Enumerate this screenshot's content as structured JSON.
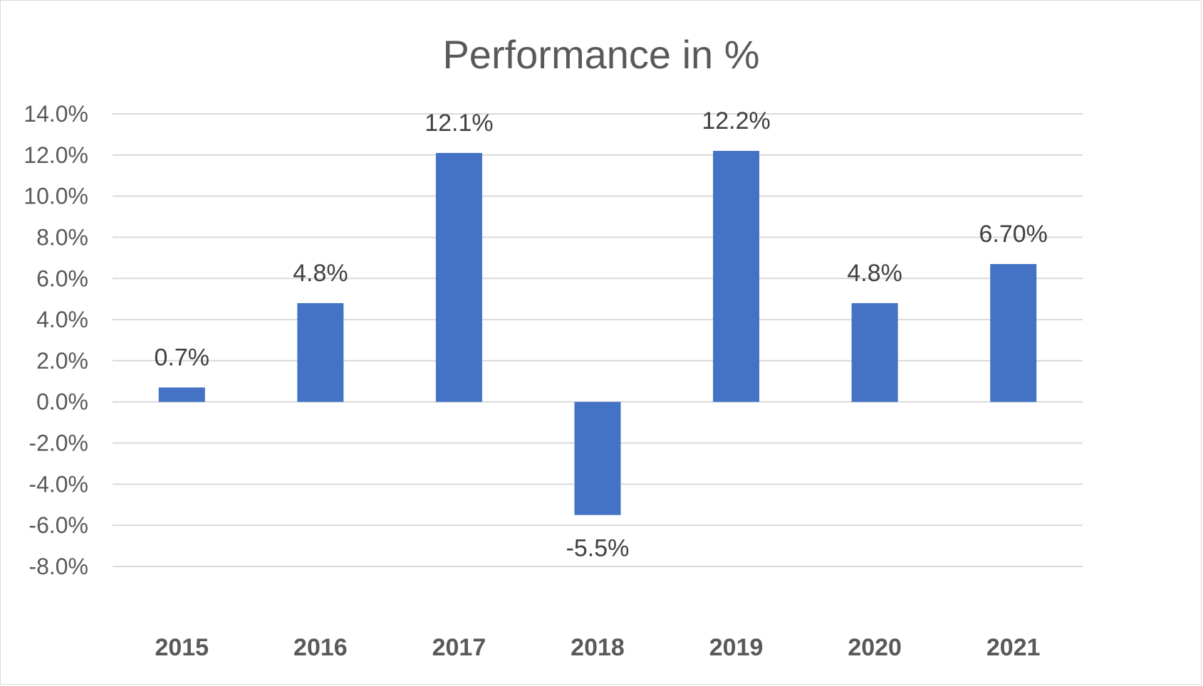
{
  "chart_data": {
    "type": "bar",
    "title": "Performance in %",
    "xlabel": "",
    "ylabel": "",
    "categories": [
      "2015",
      "2016",
      "2017",
      "2018",
      "2019",
      "2020",
      "2021"
    ],
    "values": [
      0.7,
      4.8,
      12.1,
      -5.5,
      12.2,
      4.8,
      6.7
    ],
    "data_labels": [
      "0.7%",
      "4.8%",
      "12.1%",
      "-5.5%",
      "12.2%",
      "4.8%",
      "6.70%"
    ],
    "ylim": [
      -8.0,
      14.0
    ],
    "y_ticks": [
      14.0,
      12.0,
      10.0,
      8.0,
      6.0,
      4.0,
      2.0,
      0.0,
      -2.0,
      -4.0,
      -6.0,
      -8.0
    ],
    "y_tick_labels": [
      "14.0%",
      "12.0%",
      "10.0%",
      "8.0%",
      "6.0%",
      "4.0%",
      "2.0%",
      "0.0%",
      "-2.0%",
      "-4.0%",
      "-6.0%",
      "-8.0%"
    ],
    "bar_color": "#4472c4",
    "grid": true,
    "legend": "none"
  }
}
